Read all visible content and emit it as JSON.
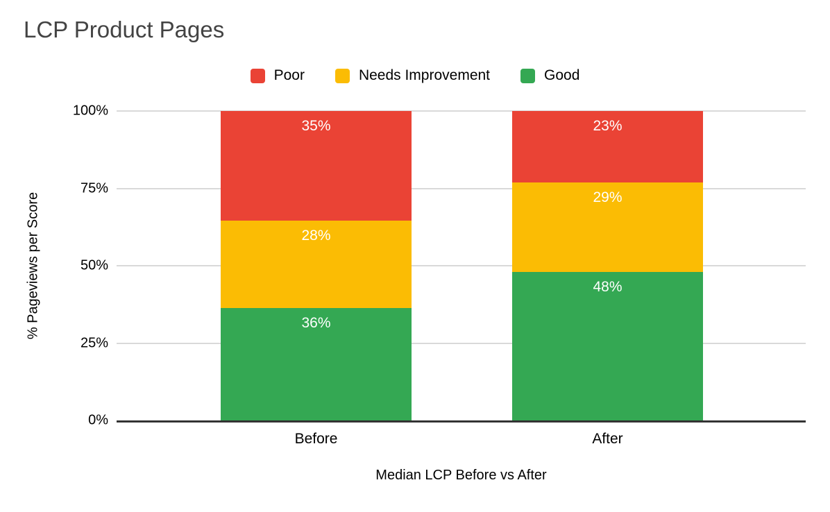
{
  "chart_data": {
    "type": "bar",
    "stacked": true,
    "title": "LCP Product Pages",
    "title_color": "#434343",
    "categories": [
      "Before",
      "After"
    ],
    "series": [
      {
        "name": "Good",
        "color": "#34A853",
        "values": [
          36,
          48
        ]
      },
      {
        "name": "Needs Improvement",
        "color": "#FBBC04",
        "values": [
          28,
          29
        ]
      },
      {
        "name": "Poor",
        "color": "#EA4335",
        "values": [
          35,
          23
        ]
      }
    ],
    "data_label_suffix": "%",
    "data_label_color": "#ffffff",
    "legend": [
      {
        "label": "Poor",
        "color": "#EA4335"
      },
      {
        "label": "Needs Improvement",
        "color": "#FBBC04"
      },
      {
        "label": "Good",
        "color": "#34A853"
      }
    ],
    "legend_position": "top",
    "xlabel": "Median LCP Before vs After",
    "ylabel": "% Pageviews per Score",
    "y_ticks": [
      "0%",
      "25%",
      "50%",
      "75%",
      "100%"
    ],
    "ylim": [
      0,
      100
    ],
    "grid": true,
    "grid_color": "#d9d9d9",
    "axis_color": "#333333"
  }
}
